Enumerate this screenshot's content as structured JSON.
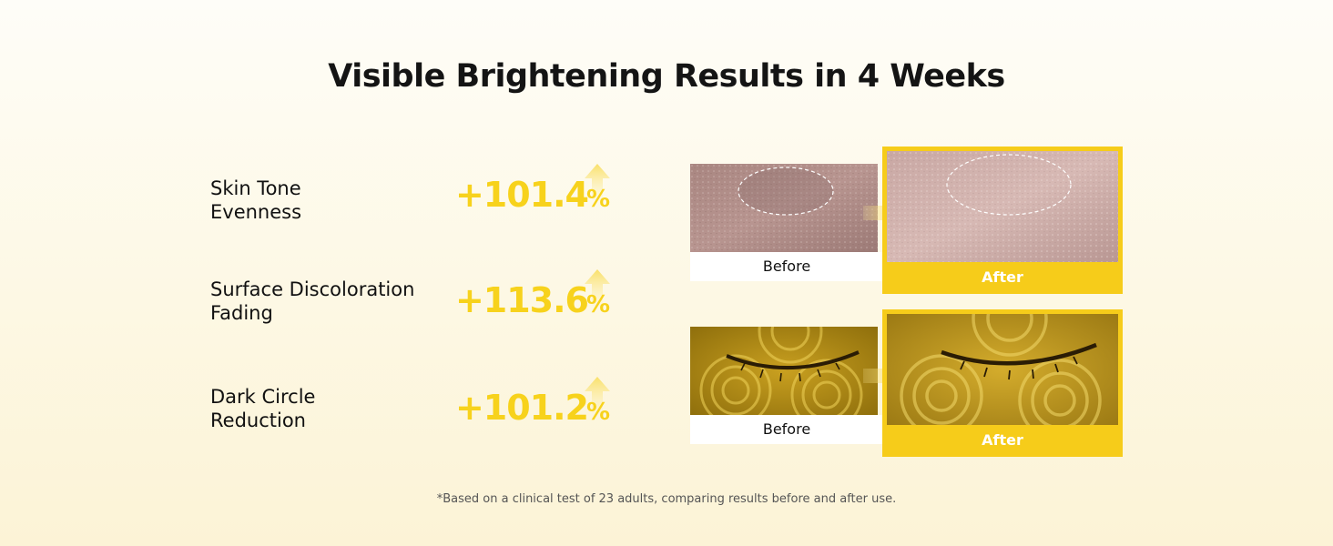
{
  "title": "Visible Brightening Results in 4 Weeks",
  "metrics": [
    {
      "label_line1": "Skin Tone",
      "label_line2": "Evenness",
      "value": "+101.4",
      "unit": "%"
    },
    {
      "label_line1": "Surface Discoloration",
      "label_line2": "Fading",
      "value": "+113.6",
      "unit": "%"
    },
    {
      "label_line1": "Dark Circle",
      "label_line2": "Reduction",
      "value": "+101.2",
      "unit": "%"
    }
  ],
  "comparisons": [
    {
      "before_label": "Before",
      "after_label": "After",
      "subject": "cheek skin close-up"
    },
    {
      "before_label": "Before",
      "after_label": "After",
      "subject": "closed eye under-eye area"
    }
  ],
  "footnote": "*Based on a clinical test of 23 adults, comparing results before and after use.",
  "colors": {
    "accent": "#f6cc1a",
    "value_text": "#f7d21c",
    "background": "#fdf8e4"
  },
  "icons": [
    "up-arrow-icon",
    "right-arrow-icon"
  ]
}
